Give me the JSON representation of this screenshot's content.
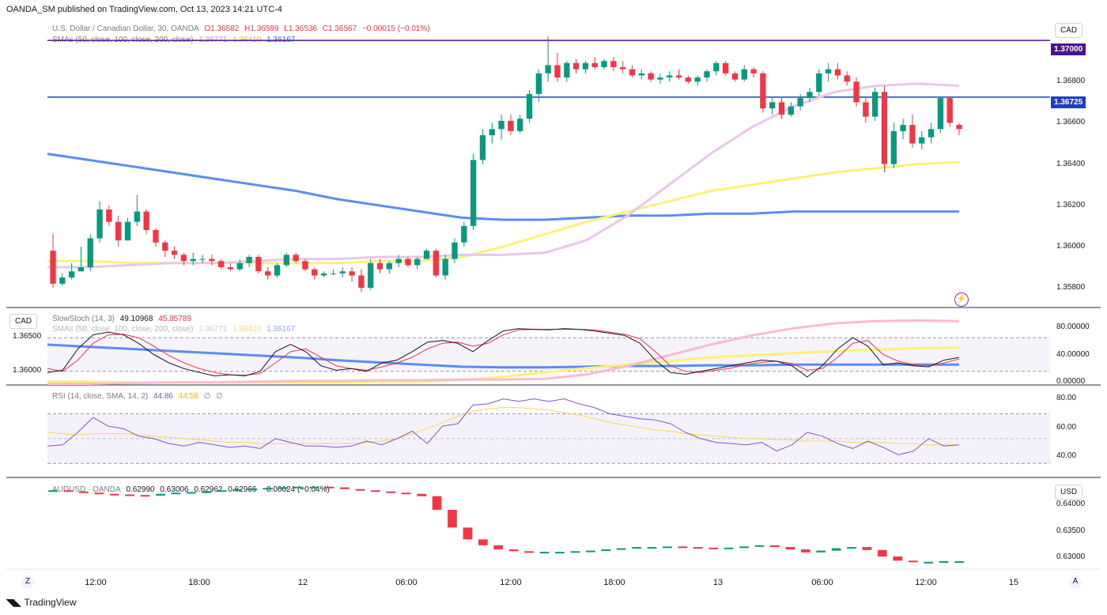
{
  "header": {
    "publisher": "OANDA_SM published on TradingView.com, Oct 13, 2023 14:21 UTC-4"
  },
  "main": {
    "symbol": "U.S. Dollar / Canadian Dollar, 30, OANDA",
    "ohlc": {
      "o": "O1.36582",
      "h": "H1.36599",
      "l": "L1.36536",
      "c": "C1.36567",
      "chg": "−0.00015 (−0.01%)"
    },
    "sma_label": "SMAs (50, close, 100, close, 200, close)",
    "sma_values": [
      "1.36771",
      "1.36410",
      "1.36167"
    ],
    "currency": "CAD",
    "price_ticks": [
      "1.36800",
      "1.36600",
      "1.36400",
      "1.36200",
      "1.36000",
      "1.35800"
    ],
    "hline_labels": [
      "1.37000",
      "1.36725"
    ]
  },
  "stoch": {
    "label": "SlowStoch (14, 3)",
    "values": [
      "49.10968",
      "45.85789"
    ],
    "overlay_label": "SMAs (50, close, 100, close, 200, close)",
    "overlay_values": [
      "1.36771",
      "1.36410",
      "1.36167"
    ],
    "left_currency": "CAD",
    "left_ticks": [
      "1.36500",
      "1.36000"
    ],
    "ticks": [
      "80.00000",
      "40.00000",
      "0.00000"
    ]
  },
  "rsi": {
    "label": "RSI (14, close, SMA, 14, 2)",
    "values": [
      "44.86",
      "44.58",
      "∅",
      "∅"
    ],
    "ticks": [
      "80.00",
      "60.00",
      "40.00"
    ]
  },
  "aud": {
    "label": "AUDUSD · OANDA",
    "values": [
      "0.62990",
      "0.63006",
      "0.62962",
      "0.62966",
      "−0.00024 (−0.04%)"
    ],
    "currency": "USD",
    "ticks": [
      "0.64000",
      "0.63500",
      "0.63000"
    ]
  },
  "time_axis": [
    "12:00",
    "18:00",
    "12",
    "06:00",
    "12:00",
    "18:00",
    "13",
    "06:00",
    "12:00",
    "15"
  ],
  "footer": {
    "brand": "TradingView"
  },
  "buttons": {
    "z": "Z",
    "a": "A"
  },
  "colors": {
    "up": "#089981",
    "down": "#f23645",
    "sma50": "#e8c8ea",
    "sma100": "#fff176",
    "sma200": "#5b8def",
    "hline_purple": "#4a148c",
    "hline_blue": "#1e3fbf",
    "stoch_k": "#131722",
    "stoch_d": "#f23645",
    "rsi": "#7e57c2",
    "rsi_ma": "#f7d75b"
  },
  "chart_data": {
    "type": "candlestick",
    "price_range": [
      1.3572,
      1.371
    ],
    "horizontal_lines": [
      1.37,
      1.36725
    ],
    "candles": [
      [
        1.3598,
        1.3606,
        1.358,
        1.3582
      ],
      [
        1.3582,
        1.3587,
        1.3581,
        1.3585
      ],
      [
        1.3585,
        1.3592,
        1.3584,
        1.3588
      ],
      [
        1.3588,
        1.36,
        1.3588,
        1.359
      ],
      [
        1.359,
        1.3606,
        1.3588,
        1.3604
      ],
      [
        1.3604,
        1.3622,
        1.3602,
        1.3618
      ],
      [
        1.3618,
        1.362,
        1.361,
        1.3612
      ],
      [
        1.3612,
        1.3615,
        1.36,
        1.3603
      ],
      [
        1.3603,
        1.3614,
        1.3603,
        1.3612
      ],
      [
        1.3612,
        1.3625,
        1.361,
        1.3617
      ],
      [
        1.3617,
        1.3618,
        1.3606,
        1.3608
      ],
      [
        1.3608,
        1.3609,
        1.36,
        1.3602
      ],
      [
        1.3602,
        1.3603,
        1.3595,
        1.3598
      ],
      [
        1.3598,
        1.36,
        1.3594,
        1.3596
      ],
      [
        1.3596,
        1.3597,
        1.3591,
        1.3593
      ],
      [
        1.3593,
        1.3597,
        1.3591,
        1.3594
      ],
      [
        1.3594,
        1.3596,
        1.3592,
        1.3594
      ],
      [
        1.3594,
        1.3596,
        1.3591,
        1.3593
      ],
      [
        1.3593,
        1.3594,
        1.3589,
        1.359
      ],
      [
        1.359,
        1.3592,
        1.3588,
        1.3589
      ],
      [
        1.3589,
        1.3594,
        1.3588,
        1.3592
      ],
      [
        1.3592,
        1.3596,
        1.359,
        1.3595
      ],
      [
        1.3595,
        1.3596,
        1.3587,
        1.3588
      ],
      [
        1.3588,
        1.359,
        1.3584,
        1.3586
      ],
      [
        1.3586,
        1.3592,
        1.3585,
        1.3591
      ],
      [
        1.3591,
        1.3597,
        1.359,
        1.3596
      ],
      [
        1.3596,
        1.3597,
        1.3592,
        1.3593
      ],
      [
        1.3593,
        1.3594,
        1.3588,
        1.3589
      ],
      [
        1.3589,
        1.359,
        1.3584,
        1.3586
      ],
      [
        1.3586,
        1.3588,
        1.3585,
        1.3587
      ],
      [
        1.3587,
        1.3589,
        1.3586,
        1.3587
      ],
      [
        1.3587,
        1.359,
        1.3585,
        1.3588
      ],
      [
        1.3588,
        1.359,
        1.3583,
        1.3586
      ],
      [
        1.3586,
        1.3589,
        1.3578,
        1.358
      ],
      [
        1.358,
        1.3594,
        1.3579,
        1.3592
      ],
      [
        1.3592,
        1.3594,
        1.3587,
        1.3589
      ],
      [
        1.3589,
        1.3593,
        1.3587,
        1.3592
      ],
      [
        1.3592,
        1.3596,
        1.359,
        1.3594
      ],
      [
        1.3594,
        1.3595,
        1.359,
        1.3591
      ],
      [
        1.3591,
        1.3595,
        1.3589,
        1.3594
      ],
      [
        1.3594,
        1.3599,
        1.3594,
        1.3598
      ],
      [
        1.3598,
        1.3599,
        1.3585,
        1.3586
      ],
      [
        1.3586,
        1.3596,
        1.3584,
        1.3594
      ],
      [
        1.3594,
        1.3604,
        1.3592,
        1.3602
      ],
      [
        1.3602,
        1.3612,
        1.36,
        1.361
      ],
      [
        1.361,
        1.3645,
        1.3608,
        1.3642
      ],
      [
        1.3642,
        1.3657,
        1.364,
        1.3654
      ],
      [
        1.3654,
        1.366,
        1.365,
        1.3657
      ],
      [
        1.3657,
        1.3664,
        1.3652,
        1.3661
      ],
      [
        1.3661,
        1.3664,
        1.3654,
        1.3656
      ],
      [
        1.3656,
        1.3664,
        1.3655,
        1.3662
      ],
      [
        1.3662,
        1.3676,
        1.366,
        1.3674
      ],
      [
        1.3674,
        1.3686,
        1.367,
        1.3684
      ],
      [
        1.3684,
        1.3702,
        1.368,
        1.3688
      ],
      [
        1.3688,
        1.3694,
        1.368,
        1.3682
      ],
      [
        1.3682,
        1.369,
        1.368,
        1.3689
      ],
      [
        1.3689,
        1.3691,
        1.3684,
        1.3686
      ],
      [
        1.3686,
        1.369,
        1.3684,
        1.3689
      ],
      [
        1.3689,
        1.3692,
        1.3686,
        1.3687
      ],
      [
        1.3687,
        1.3691,
        1.3686,
        1.369
      ],
      [
        1.369,
        1.3692,
        1.3685,
        1.3687
      ],
      [
        1.3687,
        1.369,
        1.3684,
        1.3686
      ],
      [
        1.3686,
        1.3688,
        1.3682,
        1.3683
      ],
      [
        1.3683,
        1.3686,
        1.3681,
        1.3684
      ],
      [
        1.3684,
        1.3685,
        1.368,
        1.3681
      ],
      [
        1.3681,
        1.3684,
        1.3679,
        1.3682
      ],
      [
        1.3682,
        1.3685,
        1.368,
        1.3683
      ],
      [
        1.3683,
        1.3686,
        1.3681,
        1.3682
      ],
      [
        1.3682,
        1.3683,
        1.3679,
        1.368
      ],
      [
        1.368,
        1.3683,
        1.3678,
        1.3682
      ],
      [
        1.3682,
        1.3686,
        1.368,
        1.3685
      ],
      [
        1.3685,
        1.369,
        1.3683,
        1.3689
      ],
      [
        1.3689,
        1.369,
        1.3683,
        1.3684
      ],
      [
        1.3684,
        1.3685,
        1.368,
        1.3681
      ],
      [
        1.3681,
        1.3688,
        1.368,
        1.3686
      ],
      [
        1.3686,
        1.3687,
        1.3682,
        1.3684
      ],
      [
        1.3684,
        1.3685,
        1.3665,
        1.3667
      ],
      [
        1.3667,
        1.3672,
        1.3664,
        1.367
      ],
      [
        1.367,
        1.3672,
        1.3662,
        1.3664
      ],
      [
        1.3664,
        1.367,
        1.3663,
        1.3668
      ],
      [
        1.3668,
        1.3674,
        1.3666,
        1.3672
      ],
      [
        1.3672,
        1.3677,
        1.367,
        1.3675
      ],
      [
        1.3675,
        1.3686,
        1.3673,
        1.3684
      ],
      [
        1.3684,
        1.3689,
        1.368,
        1.3686
      ],
      [
        1.3686,
        1.3689,
        1.3681,
        1.3683
      ],
      [
        1.3683,
        1.3685,
        1.3678,
        1.368
      ],
      [
        1.368,
        1.3682,
        1.3668,
        1.367
      ],
      [
        1.367,
        1.3672,
        1.366,
        1.3663
      ],
      [
        1.3663,
        1.3677,
        1.3661,
        1.3675
      ],
      [
        1.3675,
        1.3678,
        1.3636,
        1.364
      ],
      [
        1.364,
        1.366,
        1.3638,
        1.3656
      ],
      [
        1.3656,
        1.3662,
        1.3652,
        1.3659
      ],
      [
        1.3659,
        1.3664,
        1.3648,
        1.365
      ],
      [
        1.365,
        1.3656,
        1.3647,
        1.3653
      ],
      [
        1.3653,
        1.366,
        1.365,
        1.3657
      ],
      [
        1.3657,
        1.3673,
        1.3655,
        1.3672
      ],
      [
        1.3672,
        1.3673,
        1.3658,
        1.366
      ],
      [
        1.3659,
        1.366,
        1.3654,
        1.3657
      ]
    ],
    "sma50": [
      1.359,
      1.359,
      1.3591,
      1.3592,
      1.3592,
      1.3593,
      1.3594,
      1.3594,
      1.3595,
      1.3595,
      1.3596,
      1.3596,
      1.3597,
      1.3603,
      1.3615,
      1.363,
      1.3645,
      1.3658,
      1.3668,
      1.3675,
      1.3678,
      1.3679,
      1.3678
    ],
    "sma100": [
      1.3593,
      1.3593,
      1.3592,
      1.3592,
      1.3592,
      1.3592,
      1.3592,
      1.3592,
      1.3593,
      1.3593,
      1.3595,
      1.36,
      1.3606,
      1.3612,
      1.3617,
      1.3622,
      1.3627,
      1.363,
      1.3633,
      1.3636,
      1.3638,
      1.364,
      1.3641
    ],
    "sma200": [
      1.3645,
      1.3642,
      1.3639,
      1.3636,
      1.3633,
      1.363,
      1.3627,
      1.3623,
      1.362,
      1.3617,
      1.3614,
      1.3613,
      1.3613,
      1.3614,
      1.3615,
      1.3615,
      1.3616,
      1.3616,
      1.3617,
      1.3617,
      1.3617,
      1.3617,
      1.3617
    ],
    "stoch_k": [
      18,
      22,
      60,
      85,
      90,
      85,
      70,
      50,
      35,
      25,
      18,
      12,
      14,
      12,
      20,
      55,
      68,
      55,
      30,
      22,
      25,
      20,
      35,
      40,
      55,
      72,
      75,
      70,
      55,
      75,
      92,
      96,
      95,
      94,
      96,
      95,
      92,
      88,
      84,
      70,
      40,
      18,
      15,
      20,
      25,
      30,
      35,
      40,
      38,
      30,
      10,
      30,
      60,
      80,
      65,
      32,
      35,
      30,
      28,
      40,
      45
    ],
    "stoch_d": [
      25,
      20,
      40,
      70,
      85,
      86,
      80,
      65,
      48,
      35,
      25,
      18,
      14,
      13,
      16,
      35,
      55,
      60,
      45,
      30,
      25,
      22,
      28,
      35,
      45,
      60,
      70,
      72,
      65,
      70,
      85,
      94,
      95,
      95,
      95,
      95,
      94,
      90,
      86,
      78,
      55,
      30,
      20,
      18,
      22,
      26,
      32,
      36,
      38,
      34,
      22,
      25,
      45,
      70,
      75,
      50,
      38,
      32,
      30,
      35,
      42
    ],
    "rsi": [
      44,
      45,
      55,
      67,
      60,
      58,
      52,
      50,
      46,
      44,
      47,
      45,
      43,
      44,
      42,
      50,
      47,
      44,
      44,
      43,
      44,
      48,
      45,
      50,
      56,
      46,
      60,
      62,
      77,
      78,
      82,
      80,
      82,
      80,
      82,
      78,
      75,
      70,
      68,
      66,
      65,
      62,
      55,
      50,
      47,
      46,
      45,
      47,
      40,
      45,
      55,
      52,
      46,
      42,
      48,
      43,
      37,
      40,
      50,
      44,
      45
    ],
    "rsi_ma": [
      55,
      54,
      53,
      54,
      54,
      54,
      53,
      52,
      51,
      50,
      49,
      48,
      47,
      47,
      46,
      46,
      46,
      46,
      46,
      46,
      46,
      47,
      48,
      50,
      54,
      58,
      63,
      68,
      72,
      74,
      75,
      75,
      74,
      73,
      71,
      69,
      66,
      63,
      61,
      59,
      57,
      56,
      54,
      53,
      52,
      51,
      50,
      50,
      49,
      49,
      48,
      48,
      48,
      47,
      47,
      47,
      46,
      46,
      45,
      45,
      45
    ],
    "audusd": [
      0.6418,
      0.6416,
      0.6414,
      0.6412,
      0.6411,
      0.641,
      0.6409,
      0.6412,
      0.6414,
      0.6415,
      0.6416,
      0.6418,
      0.642,
      0.6421,
      0.6422,
      0.6423,
      0.6424,
      0.6424,
      0.6423,
      0.642,
      0.6418,
      0.6416,
      0.6414,
      0.6412,
      0.6408,
      0.6385,
      0.6355,
      0.6335,
      0.6325,
      0.6318,
      0.6315,
      0.6314,
      0.6314,
      0.6314,
      0.6315,
      0.6316,
      0.6318,
      0.632,
      0.6322,
      0.6322,
      0.6323,
      0.6322,
      0.6321,
      0.632,
      0.6321,
      0.6323,
      0.6325,
      0.6322,
      0.6318,
      0.6313,
      0.6316,
      0.632,
      0.6322,
      0.6317,
      0.6306,
      0.6299,
      0.6297,
      0.6297,
      0.6298,
      0.6298
    ]
  }
}
